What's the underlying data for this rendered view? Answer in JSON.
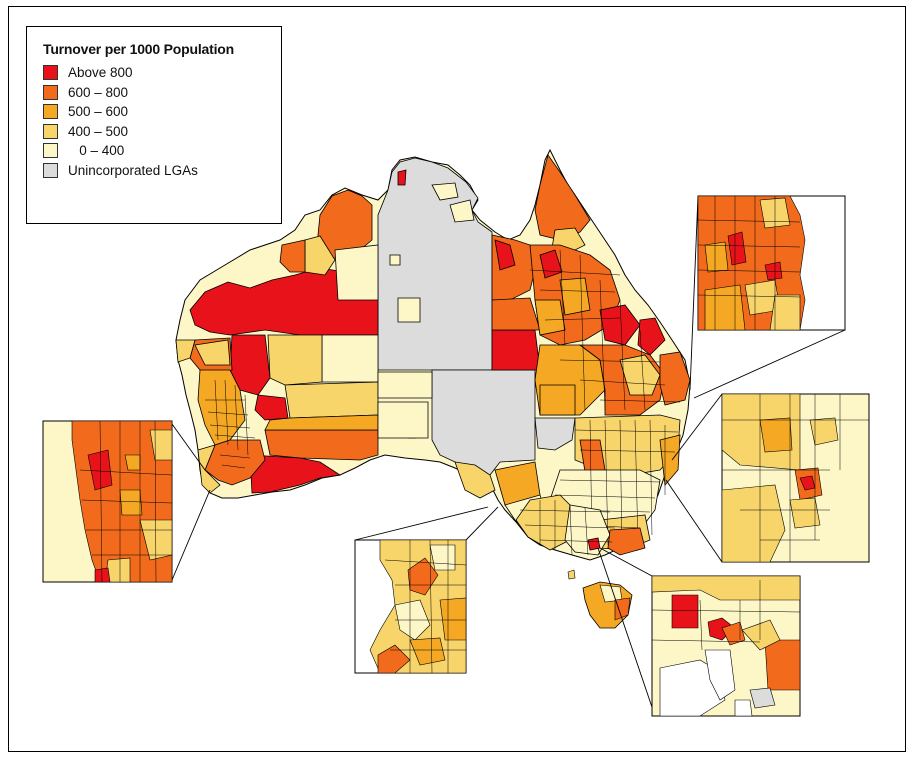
{
  "legend": {
    "title": "Turnover per 1000 Population",
    "items": [
      {
        "label": "Above 800",
        "color": "#e8131a"
      },
      {
        "label": "600 – 800",
        "color": "#f26a1b"
      },
      {
        "label": "500 – 600",
        "color": "#f5a823"
      },
      {
        "label": "400 – 500",
        "color": "#f8d56b"
      },
      {
        "label": "   0 – 400",
        "color": "#fdf7c8"
      },
      {
        "label": "Unincorporated LGAs",
        "color": "#dcdcdc"
      }
    ]
  },
  "colors": {
    "above_800": "#e8131a",
    "r600_800": "#f26a1b",
    "r500_600": "#f5a823",
    "r400_500": "#f8d56b",
    "r0_400": "#fdf7c8",
    "unincorporated": "#dcdcdc",
    "border": "#000000"
  },
  "insets": [
    {
      "region": "perth",
      "name": "perth-inset"
    },
    {
      "region": "adelaide",
      "name": "adelaide-inset"
    },
    {
      "region": "melbourne",
      "name": "melbourne-inset"
    },
    {
      "region": "sydney",
      "name": "sydney-inset"
    },
    {
      "region": "brisbane",
      "name": "brisbane-inset"
    }
  ]
}
